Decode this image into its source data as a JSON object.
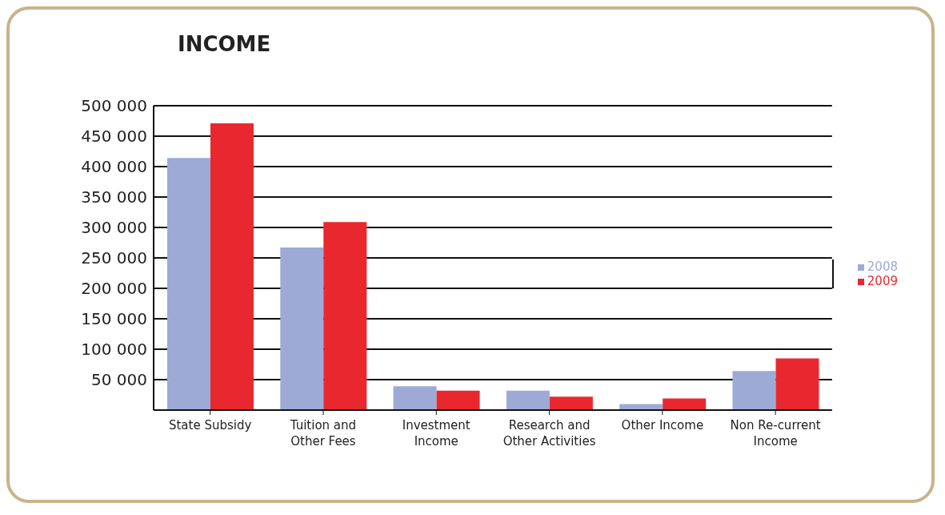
{
  "chart_data": {
    "type": "bar",
    "title": "INCOME",
    "categories": [
      "State Subsidy",
      "Tuition and Other Fees",
      "Investment Income",
      "Research and Other Activities",
      "Other Income",
      "Non Re-current Income"
    ],
    "series": [
      {
        "name": "2008",
        "color": "#9eaad6",
        "values": [
          414000,
          267000,
          39000,
          32000,
          10000,
          64000
        ]
      },
      {
        "name": "2009",
        "color": "#e8282e",
        "values": [
          471000,
          309000,
          32000,
          22000,
          19000,
          85000
        ]
      }
    ],
    "ylim": [
      0,
      500000
    ],
    "yticks": [
      {
        "value": 50000,
        "label": "50 000"
      },
      {
        "value": 100000,
        "label": "100 000"
      },
      {
        "value": 150000,
        "label": "150 000"
      },
      {
        "value": 200000,
        "label": "200 000"
      },
      {
        "value": 250000,
        "label": "250 000"
      },
      {
        "value": 300000,
        "label": "300 000"
      },
      {
        "value": 350000,
        "label": "350 000"
      },
      {
        "value": 400000,
        "label": "400 000"
      },
      {
        "value": 450000,
        "label": "450 000"
      },
      {
        "value": 500000,
        "label": "500 000"
      }
    ],
    "grid": "y",
    "legend": "right"
  }
}
